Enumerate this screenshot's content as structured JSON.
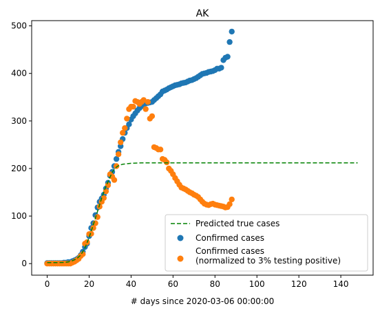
{
  "chart_data": {
    "type": "scatter",
    "title": "AK",
    "xlabel": "# days since 2020-03-06 00:00:00",
    "ylabel": "",
    "xlim": [
      -7.4,
      155.4
    ],
    "ylim": [
      -24.3,
      511
    ],
    "xticks": [
      0,
      20,
      40,
      60,
      80,
      100,
      120,
      140
    ],
    "yticks": [
      0,
      100,
      200,
      300,
      400,
      500
    ],
    "grid": false,
    "legend": {
      "placement": "lower right",
      "entries": [
        "Predicted true cases",
        "Confirmed cases",
        "Confirmed cases\n(normalized to 3% testing positive)"
      ]
    },
    "series": [
      {
        "name": "Predicted true cases",
        "kind": "line",
        "style": "dashed",
        "color": "#008000",
        "x": [
          0,
          4,
          8,
          10,
          12,
          14,
          16,
          18,
          20,
          22,
          24,
          26,
          28,
          30,
          31,
          32,
          33,
          34,
          36,
          40,
          45,
          50,
          60,
          80,
          100,
          120,
          148
        ],
        "y": [
          2,
          2,
          2.5,
          3.5,
          6,
          10,
          18,
          33,
          55,
          82,
          110,
          138,
          162,
          182,
          192,
          198,
          203,
          206,
          209,
          211,
          212,
          212,
          212,
          212,
          212,
          212,
          212
        ]
      },
      {
        "name": "Confirmed cases",
        "kind": "scatter",
        "color": "#1f77b4",
        "x": [
          0,
          1,
          2,
          3,
          4,
          5,
          6,
          7,
          8,
          9,
          10,
          11,
          12,
          13,
          14,
          15,
          16,
          17,
          18,
          19,
          20,
          21,
          22,
          23,
          24,
          25,
          26,
          27,
          28,
          29,
          30,
          31,
          32,
          33,
          34,
          35,
          36,
          37,
          38,
          39,
          40,
          41,
          42,
          43,
          44,
          45,
          46,
          47,
          48,
          49,
          50,
          51,
          52,
          53,
          54,
          55,
          56,
          57,
          58,
          59,
          60,
          61,
          62,
          63,
          64,
          65,
          66,
          67,
          68,
          69,
          70,
          71,
          72,
          73,
          74,
          75,
          76,
          77,
          78,
          79,
          80,
          81,
          82,
          83,
          84,
          85,
          86,
          87,
          88
        ],
        "y": [
          1,
          1,
          1,
          1,
          1,
          1,
          1,
          1,
          2,
          2,
          3,
          3,
          5,
          7,
          9,
          12,
          18,
          25,
          35,
          42,
          58,
          75,
          85,
          102,
          118,
          130,
          137,
          145,
          158,
          170,
          185,
          193,
          205,
          220,
          235,
          247,
          262,
          275,
          285,
          293,
          303,
          310,
          316,
          322,
          327,
          331,
          335,
          337,
          338,
          339,
          340,
          344,
          348,
          352,
          356,
          362,
          364,
          366,
          369,
          371,
          373,
          375,
          376,
          377,
          379,
          380,
          381,
          383,
          385,
          386,
          388,
          390,
          393,
          396,
          399,
          400,
          401,
          403,
          404,
          405,
          407,
          410,
          410,
          412,
          428,
          433,
          435,
          466,
          488
        ]
      },
      {
        "name": "Confirmed cases\n(normalized to 3% testing positive)",
        "kind": "scatter",
        "color": "#ff7f0e",
        "x": [
          0,
          1,
          2,
          3,
          4,
          5,
          6,
          7,
          8,
          9,
          10,
          11,
          12,
          13,
          14,
          15,
          16,
          17,
          18,
          19,
          20,
          21,
          22,
          23,
          24,
          25,
          26,
          27,
          28,
          29,
          30,
          31,
          32,
          33,
          34,
          35,
          36,
          37,
          38,
          39,
          40,
          41,
          42,
          43,
          44,
          45,
          46,
          47,
          48,
          49,
          50,
          51,
          52,
          53,
          54,
          55,
          56,
          57,
          58,
          59,
          60,
          61,
          62,
          63,
          64,
          65,
          66,
          67,
          68,
          69,
          70,
          71,
          72,
          73,
          74,
          75,
          76,
          77,
          78,
          79,
          80,
          81,
          82,
          83,
          84,
          85,
          86,
          87,
          88
        ],
        "y": [
          0,
          0,
          0,
          0,
          0,
          0,
          0,
          0,
          0,
          0,
          0,
          0,
          2,
          4,
          7,
          10,
          16,
          20,
          42,
          45,
          62,
          63,
          75,
          85,
          98,
          120,
          130,
          138,
          152,
          165,
          188,
          183,
          176,
          205,
          230,
          255,
          275,
          285,
          305,
          325,
          330,
          330,
          342,
          340,
          336,
          340,
          344,
          325,
          340,
          305,
          310,
          245,
          243,
          240,
          240,
          220,
          218,
          213,
          200,
          195,
          188,
          180,
          173,
          166,
          160,
          158,
          156,
          153,
          150,
          148,
          145,
          143,
          140,
          135,
          130,
          126,
          124,
          123,
          125,
          126,
          124,
          123,
          122,
          121,
          120,
          118,
          119,
          125,
          135
        ]
      }
    ]
  }
}
